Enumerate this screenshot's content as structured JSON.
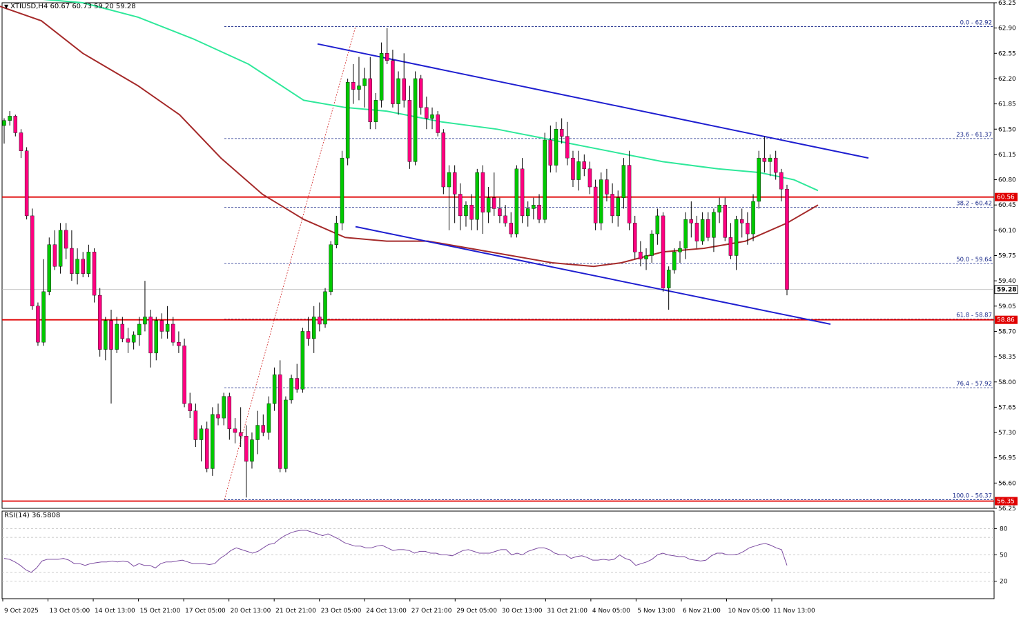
{
  "header": {
    "symbol": "XTIUSD,H4",
    "ohlc": "60.67 60.73 59.20 59.28"
  },
  "rsi": {
    "label": "RSI(14) 36.5808",
    "levels": [
      80,
      70,
      50,
      30,
      20
    ],
    "tick_labels": [
      "80",
      "50",
      "20"
    ]
  },
  "colors": {
    "bull": "#00c800",
    "bear": "#ff0080",
    "wick": "#000000",
    "ma_fast": "#2ee89a",
    "ma_slow": "#a52a2a",
    "channel": "#1f1fd0",
    "horizontal_level": "#e00000",
    "fib": "#1a2a8a",
    "rsi_line": "#7b4aa0"
  },
  "chart_data": {
    "type": "candlestick",
    "timeframe": "H4",
    "ylim": [
      56.25,
      63.25
    ],
    "y_ticks": [
      "63.25",
      "62.90",
      "62.55",
      "62.20",
      "61.85",
      "61.50",
      "61.15",
      "60.80",
      "60.45",
      "60.10",
      "59.75",
      "59.40",
      "59.05",
      "58.70",
      "58.35",
      "58.00",
      "57.65",
      "57.30",
      "56.95",
      "56.60",
      "56.25"
    ],
    "x_tick_labels": [
      "9 Oct 2025",
      "13 Oct 05:00",
      "14 Oct 13:00",
      "15 Oct 21:00",
      "17 Oct 05:00",
      "20 Oct 13:00",
      "21 Oct 21:00",
      "23 Oct 05:00",
      "24 Oct 13:00",
      "27 Oct 21:00",
      "29 Oct 05:00",
      "30 Oct 13:00",
      "31 Oct 21:00",
      "4 Nov 05:00",
      "5 Nov 13:00",
      "6 Nov 21:00",
      "10 Nov 05:00",
      "11 Nov 13:00"
    ],
    "current_price": "59.28",
    "horizontal_levels": [
      {
        "value": 60.56,
        "label": "60.56"
      },
      {
        "value": 58.86,
        "label": "58.86"
      },
      {
        "value": 56.35,
        "label": "56.35"
      }
    ],
    "fibonacci": [
      {
        "value": 62.92,
        "label": "0.0 - 62.92"
      },
      {
        "value": 61.37,
        "label": "23.6 - 61.37"
      },
      {
        "value": 60.42,
        "label": "38.2 - 60.42"
      },
      {
        "value": 59.64,
        "label": "50.0 - 59.64"
      },
      {
        "value": 58.87,
        "label": "61.8 - 58.87"
      },
      {
        "value": 57.92,
        "label": "76.4 - 57.92"
      },
      {
        "value": 56.37,
        "label": "100.0 - 56.37"
      }
    ],
    "candles": [
      [
        61.55,
        61.65,
        61.3,
        61.62
      ],
      [
        61.62,
        61.75,
        61.55,
        61.68
      ],
      [
        61.68,
        61.7,
        61.4,
        61.45
      ],
      [
        61.45,
        61.5,
        61.1,
        61.2
      ],
      [
        61.2,
        61.25,
        60.25,
        60.3
      ],
      [
        60.3,
        60.4,
        59.0,
        59.05
      ],
      [
        59.05,
        59.1,
        58.5,
        58.55
      ],
      [
        58.55,
        59.7,
        58.5,
        59.25
      ],
      [
        59.25,
        60.0,
        59.2,
        59.9
      ],
      [
        59.9,
        60.1,
        59.55,
        59.6
      ],
      [
        59.6,
        60.2,
        59.5,
        60.1
      ],
      [
        60.1,
        60.2,
        59.7,
        59.85
      ],
      [
        59.85,
        60.1,
        59.4,
        59.5
      ],
      [
        59.5,
        59.85,
        59.35,
        59.7
      ],
      [
        59.7,
        59.8,
        59.45,
        59.5
      ],
      [
        59.5,
        59.9,
        59.45,
        59.8
      ],
      [
        59.8,
        59.85,
        59.1,
        59.2
      ],
      [
        59.2,
        59.3,
        58.35,
        58.45
      ],
      [
        58.45,
        58.9,
        58.3,
        58.85
      ],
      [
        58.85,
        59.0,
        57.7,
        58.45
      ],
      [
        58.45,
        58.9,
        58.4,
        58.8
      ],
      [
        58.8,
        58.9,
        58.55,
        58.6
      ],
      [
        58.6,
        58.75,
        58.4,
        58.55
      ],
      [
        58.55,
        58.7,
        58.45,
        58.65
      ],
      [
        58.65,
        58.9,
        58.5,
        58.8
      ],
      [
        58.8,
        59.4,
        58.7,
        58.9
      ],
      [
        58.9,
        59.0,
        58.2,
        58.4
      ],
      [
        58.4,
        58.9,
        58.3,
        58.85
      ],
      [
        58.85,
        58.95,
        58.6,
        58.7
      ],
      [
        58.7,
        59.05,
        58.6,
        58.8
      ],
      [
        58.8,
        58.9,
        58.5,
        58.55
      ],
      [
        58.55,
        58.7,
        58.4,
        58.5
      ],
      [
        58.5,
        58.6,
        57.65,
        57.7
      ],
      [
        57.7,
        57.85,
        57.5,
        57.6
      ],
      [
        57.6,
        57.7,
        57.1,
        57.2
      ],
      [
        57.2,
        57.4,
        56.9,
        57.35
      ],
      [
        57.35,
        57.45,
        56.75,
        56.8
      ],
      [
        56.8,
        57.65,
        56.7,
        57.55
      ],
      [
        57.55,
        57.7,
        57.4,
        57.5
      ],
      [
        57.5,
        57.85,
        57.4,
        57.8
      ],
      [
        57.8,
        57.85,
        57.2,
        57.35
      ],
      [
        57.35,
        57.5,
        57.15,
        57.3
      ],
      [
        57.3,
        57.65,
        57.1,
        57.25
      ],
      [
        57.25,
        57.4,
        56.4,
        56.9
      ],
      [
        56.9,
        57.3,
        56.8,
        57.2
      ],
      [
        57.2,
        57.6,
        57.0,
        57.4
      ],
      [
        57.4,
        57.55,
        57.25,
        57.3
      ],
      [
        57.3,
        57.8,
        57.2,
        57.7
      ],
      [
        57.7,
        58.2,
        57.6,
        58.1
      ],
      [
        58.1,
        58.3,
        56.75,
        56.8
      ],
      [
        56.8,
        57.8,
        56.75,
        57.75
      ],
      [
        57.75,
        58.1,
        57.7,
        58.05
      ],
      [
        58.05,
        58.25,
        57.85,
        57.9
      ],
      [
        57.9,
        58.75,
        57.85,
        58.7
      ],
      [
        58.7,
        58.9,
        58.5,
        58.6
      ],
      [
        58.6,
        59.05,
        58.4,
        58.9
      ],
      [
        58.9,
        59.1,
        58.7,
        58.8
      ],
      [
        58.8,
        59.3,
        58.75,
        59.25
      ],
      [
        59.25,
        59.95,
        59.2,
        59.9
      ],
      [
        59.9,
        60.3,
        59.85,
        60.2
      ],
      [
        60.2,
        61.2,
        60.1,
        61.1
      ],
      [
        61.1,
        62.2,
        61.0,
        62.15
      ],
      [
        62.15,
        62.4,
        61.85,
        62.05
      ],
      [
        62.05,
        62.5,
        61.9,
        62.1
      ],
      [
        62.1,
        62.35,
        61.8,
        62.2
      ],
      [
        62.2,
        62.5,
        61.5,
        61.6
      ],
      [
        61.6,
        62.0,
        61.5,
        61.9
      ],
      [
        61.9,
        62.7,
        61.8,
        62.55
      ],
      [
        62.55,
        62.9,
        62.4,
        62.45
      ],
      [
        62.45,
        62.6,
        61.8,
        61.85
      ],
      [
        61.85,
        62.3,
        61.7,
        62.2
      ],
      [
        62.2,
        62.55,
        61.8,
        61.9
      ],
      [
        61.9,
        62.1,
        60.95,
        61.05
      ],
      [
        61.05,
        62.3,
        61.0,
        62.2
      ],
      [
        62.2,
        62.25,
        61.7,
        61.8
      ],
      [
        61.8,
        61.95,
        61.5,
        61.65
      ],
      [
        61.65,
        61.8,
        61.5,
        61.7
      ],
      [
        61.7,
        61.75,
        61.4,
        61.45
      ],
      [
        61.45,
        61.5,
        60.6,
        60.7
      ],
      [
        60.7,
        61.0,
        60.1,
        60.9
      ],
      [
        60.9,
        61.0,
        60.2,
        60.6
      ],
      [
        60.6,
        60.75,
        60.1,
        60.3
      ],
      [
        60.3,
        60.5,
        60.15,
        60.45
      ],
      [
        60.45,
        60.6,
        60.1,
        60.25
      ],
      [
        60.25,
        60.95,
        60.1,
        60.9
      ],
      [
        60.9,
        61.0,
        60.05,
        60.35
      ],
      [
        60.35,
        60.7,
        60.2,
        60.55
      ],
      [
        60.55,
        60.9,
        60.3,
        60.4
      ],
      [
        60.4,
        60.55,
        60.2,
        60.3
      ],
      [
        60.3,
        60.45,
        60.15,
        60.2
      ],
      [
        60.2,
        60.35,
        60.0,
        60.05
      ],
      [
        60.05,
        61.0,
        60.0,
        60.95
      ],
      [
        60.95,
        61.1,
        60.2,
        60.3
      ],
      [
        60.3,
        60.5,
        60.15,
        60.4
      ],
      [
        60.4,
        60.55,
        60.25,
        60.45
      ],
      [
        60.45,
        60.6,
        60.2,
        60.25
      ],
      [
        60.25,
        61.45,
        60.2,
        61.35
      ],
      [
        61.35,
        61.55,
        60.9,
        61.0
      ],
      [
        61.0,
        61.6,
        60.9,
        61.5
      ],
      [
        61.5,
        61.65,
        61.3,
        61.4
      ],
      [
        61.4,
        61.6,
        61.0,
        61.1
      ],
      [
        61.1,
        61.2,
        60.7,
        60.8
      ],
      [
        60.8,
        61.2,
        60.65,
        61.05
      ],
      [
        61.05,
        61.15,
        60.85,
        60.95
      ],
      [
        60.95,
        61.05,
        60.6,
        60.7
      ],
      [
        60.7,
        60.8,
        60.1,
        60.2
      ],
      [
        60.2,
        60.9,
        60.1,
        60.8
      ],
      [
        60.8,
        60.95,
        60.5,
        60.6
      ],
      [
        60.6,
        60.75,
        60.2,
        60.3
      ],
      [
        60.3,
        60.65,
        60.15,
        60.55
      ],
      [
        60.55,
        61.1,
        60.4,
        61.0
      ],
      [
        61.0,
        61.2,
        60.1,
        60.2
      ],
      [
        60.2,
        60.3,
        59.7,
        59.8
      ],
      [
        59.8,
        59.95,
        59.6,
        59.7
      ],
      [
        59.7,
        59.85,
        59.55,
        59.75
      ],
      [
        59.75,
        60.1,
        59.65,
        60.05
      ],
      [
        60.05,
        60.4,
        59.9,
        60.3
      ],
      [
        60.3,
        60.35,
        59.25,
        59.3
      ],
      [
        59.3,
        59.6,
        59.0,
        59.55
      ],
      [
        59.55,
        59.85,
        59.5,
        59.8
      ],
      [
        59.8,
        59.95,
        59.65,
        59.85
      ],
      [
        59.85,
        60.35,
        59.7,
        60.25
      ],
      [
        60.25,
        60.5,
        60.0,
        60.2
      ],
      [
        60.2,
        60.3,
        59.85,
        59.95
      ],
      [
        59.95,
        60.35,
        59.9,
        60.25
      ],
      [
        60.25,
        60.35,
        59.95,
        60.0
      ],
      [
        60.0,
        60.4,
        59.8,
        60.35
      ],
      [
        60.35,
        60.55,
        60.2,
        60.45
      ],
      [
        60.45,
        60.55,
        59.95,
        60.0
      ],
      [
        60.0,
        60.2,
        59.7,
        59.75
      ],
      [
        59.75,
        60.3,
        59.55,
        60.25
      ],
      [
        60.25,
        60.4,
        60.0,
        60.2
      ],
      [
        60.2,
        60.35,
        59.9,
        60.05
      ],
      [
        60.05,
        60.6,
        59.95,
        60.5
      ],
      [
        60.5,
        61.2,
        60.4,
        61.1
      ],
      [
        61.1,
        61.4,
        60.9,
        61.05
      ],
      [
        61.05,
        61.15,
        60.85,
        61.1
      ],
      [
        61.1,
        61.2,
        60.8,
        60.9
      ],
      [
        60.9,
        60.95,
        60.5,
        60.67
      ],
      [
        60.67,
        60.73,
        59.2,
        59.28
      ]
    ],
    "moving_averages": [
      {
        "points": [
          [
            60,
            63.3
          ],
          [
            120,
            63.25
          ],
          [
            200,
            63.05
          ],
          [
            280,
            62.75
          ],
          [
            360,
            62.4
          ],
          [
            440,
            61.9
          ],
          [
            500,
            61.8
          ],
          [
            560,
            61.75
          ],
          [
            640,
            61.6
          ],
          [
            720,
            61.5
          ],
          [
            800,
            61.35
          ],
          [
            880,
            61.2
          ],
          [
            960,
            61.05
          ],
          [
            1040,
            60.95
          ],
          [
            1100,
            60.9
          ],
          [
            1150,
            60.8
          ],
          [
            1185,
            60.65
          ]
        ]
      },
      {
        "points": [
          [
            0,
            63.2
          ],
          [
            60,
            63.0
          ],
          [
            120,
            62.55
          ],
          [
            200,
            62.1
          ],
          [
            260,
            61.7
          ],
          [
            320,
            61.1
          ],
          [
            380,
            60.6
          ],
          [
            440,
            60.25
          ],
          [
            500,
            60.0
          ],
          [
            560,
            59.95
          ],
          [
            620,
            59.95
          ],
          [
            680,
            59.85
          ],
          [
            740,
            59.75
          ],
          [
            800,
            59.65
          ],
          [
            860,
            59.6
          ],
          [
            900,
            59.65
          ],
          [
            960,
            59.8
          ],
          [
            1020,
            59.85
          ],
          [
            1080,
            59.95
          ],
          [
            1140,
            60.2
          ],
          [
            1185,
            60.45
          ]
        ]
      }
    ],
    "channel_lines": [
      {
        "from": [
          460,
          62.68
        ],
        "to": [
          1258,
          61.1
        ]
      },
      {
        "from": [
          515,
          60.15
        ],
        "to": [
          1203,
          58.8
        ]
      }
    ],
    "fib_diagonal": {
      "from": [
        325,
        56.37
      ],
      "to": [
        515,
        62.92
      ]
    },
    "rsi_values": [
      46,
      45,
      42,
      38,
      33,
      30,
      35,
      43,
      45,
      45,
      45,
      46,
      44,
      40,
      40,
      38,
      40,
      41,
      42,
      42,
      43,
      42,
      43,
      42,
      37,
      40,
      38,
      38,
      35,
      40,
      42,
      42,
      43,
      44,
      42,
      40,
      40,
      40,
      39,
      40,
      46,
      50,
      55,
      58,
      56,
      54,
      52,
      54,
      58,
      62,
      63,
      68,
      72,
      75,
      77,
      78,
      78,
      76,
      74,
      72,
      74,
      71,
      68,
      64,
      62,
      60,
      60,
      58,
      58,
      60,
      61,
      58,
      55,
      56,
      56,
      55,
      52,
      54,
      54,
      52,
      52,
      50,
      50,
      49,
      52,
      55,
      56,
      54,
      52,
      52,
      52,
      54,
      56,
      56,
      50,
      52,
      50,
      54,
      56,
      58,
      58,
      56,
      52,
      50,
      50,
      46,
      48,
      49,
      47,
      44,
      44,
      45,
      44,
      45,
      50,
      46,
      44,
      38,
      40,
      42,
      45,
      50,
      52,
      50,
      49,
      48,
      48,
      45,
      44,
      43,
      44,
      49,
      52,
      52,
      50,
      50,
      51,
      54,
      58,
      60,
      62,
      63,
      61,
      58,
      56,
      38
    ]
  }
}
